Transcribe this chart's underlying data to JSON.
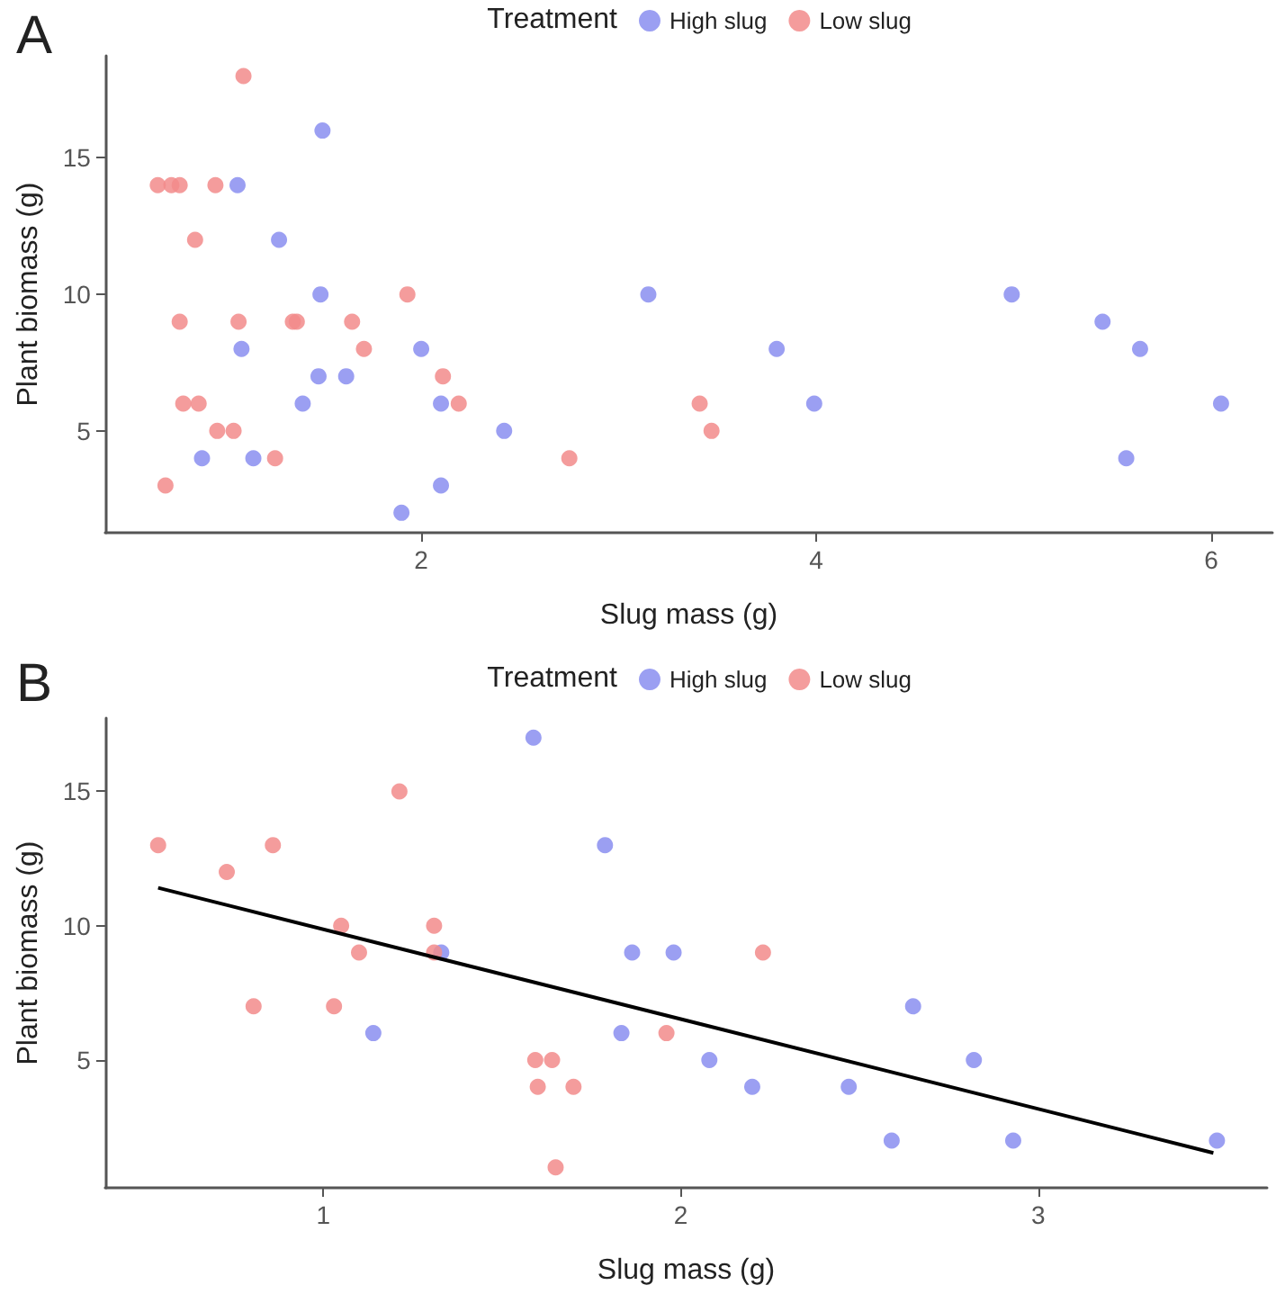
{
  "chart_data": [
    {
      "type": "scatter",
      "title": "A",
      "xlabel": "Slug mass (g)",
      "ylabel": "Plant biomass (g)",
      "legend_title": "Treatment",
      "legend": "top",
      "grid": false,
      "marker": "circle",
      "xlim": [
        0.4,
        6.31
      ],
      "ylim": [
        1.27,
        18.74
      ],
      "xticks": [
        2,
        4,
        6
      ],
      "yticks": [
        5,
        10,
        15
      ],
      "series": [
        {
          "name": "High slug",
          "color": "#8a8ef0",
          "x": [
            1.07,
            1.5,
            1.28,
            1.49,
            1.09,
            1.48,
            1.62,
            1.4,
            0.89,
            1.15,
            2.0,
            2.1,
            2.1,
            1.9,
            2.42,
            3.15,
            3.8,
            3.99,
            4.99,
            5.45,
            5.64,
            5.57,
            6.05
          ],
          "values": [
            14,
            16,
            12,
            10,
            8,
            7,
            7,
            6,
            4,
            4,
            8,
            6,
            3,
            2,
            5,
            10,
            8,
            6,
            10,
            9,
            8,
            4,
            6
          ]
        },
        {
          "name": "Low slug",
          "color": "#f28b8b",
          "x": [
            0.666,
            0.735,
            0.777,
            0.958,
            1.1,
            0.855,
            0.777,
            1.075,
            1.35,
            1.37,
            1.65,
            1.71,
            1.93,
            2.11,
            2.19,
            0.795,
            0.873,
            0.967,
            1.05,
            1.26,
            0.705,
            2.75,
            3.41,
            3.47
          ],
          "values": [
            14,
            14,
            14,
            14,
            18,
            12,
            9,
            9,
            9,
            9,
            9,
            8,
            10,
            7,
            6,
            6,
            6,
            5,
            5,
            4,
            3,
            4,
            6,
            5
          ]
        }
      ]
    },
    {
      "type": "scatter",
      "title": "B",
      "xlabel": "Slug mass (g)",
      "ylabel": "Plant biomass (g)",
      "legend_title": "Treatment",
      "legend": "top",
      "grid": false,
      "marker": "circle",
      "xlim": [
        0.39,
        3.64
      ],
      "ylim": [
        0.24,
        17.73
      ],
      "xticks": [
        1,
        2,
        3
      ],
      "yticks": [
        5,
        10,
        15
      ],
      "series": [
        {
          "name": "High slug",
          "color": "#8a8ef0",
          "x": [
            1.33,
            1.14,
            1.588,
            1.788,
            1.864,
            1.834,
            1.98,
            2.08,
            2.2,
            2.47,
            2.59,
            2.65,
            2.82,
            2.93,
            3.5
          ],
          "values": [
            9,
            6,
            17,
            13,
            9,
            6,
            9,
            5,
            4,
            4,
            2,
            7,
            5,
            2,
            2
          ]
        },
        {
          "name": "Low slug",
          "color": "#f28b8b",
          "x": [
            0.538,
            0.73,
            0.859,
            0.805,
            1.213,
            1.05,
            1.1,
            1.03,
            1.31,
            1.31,
            1.593,
            1.64,
            1.6,
            1.7,
            1.65,
            1.96,
            2.23
          ],
          "values": [
            13,
            12,
            13,
            7,
            15,
            10,
            9,
            7,
            10,
            9,
            5,
            5,
            4,
            4,
            1,
            6,
            9
          ]
        },
        {
          "type": "line",
          "color": "#000000",
          "marker": "none",
          "x": [
            0.538,
            3.49
          ],
          "values": [
            11.41,
            1.54
          ]
        }
      ]
    }
  ]
}
